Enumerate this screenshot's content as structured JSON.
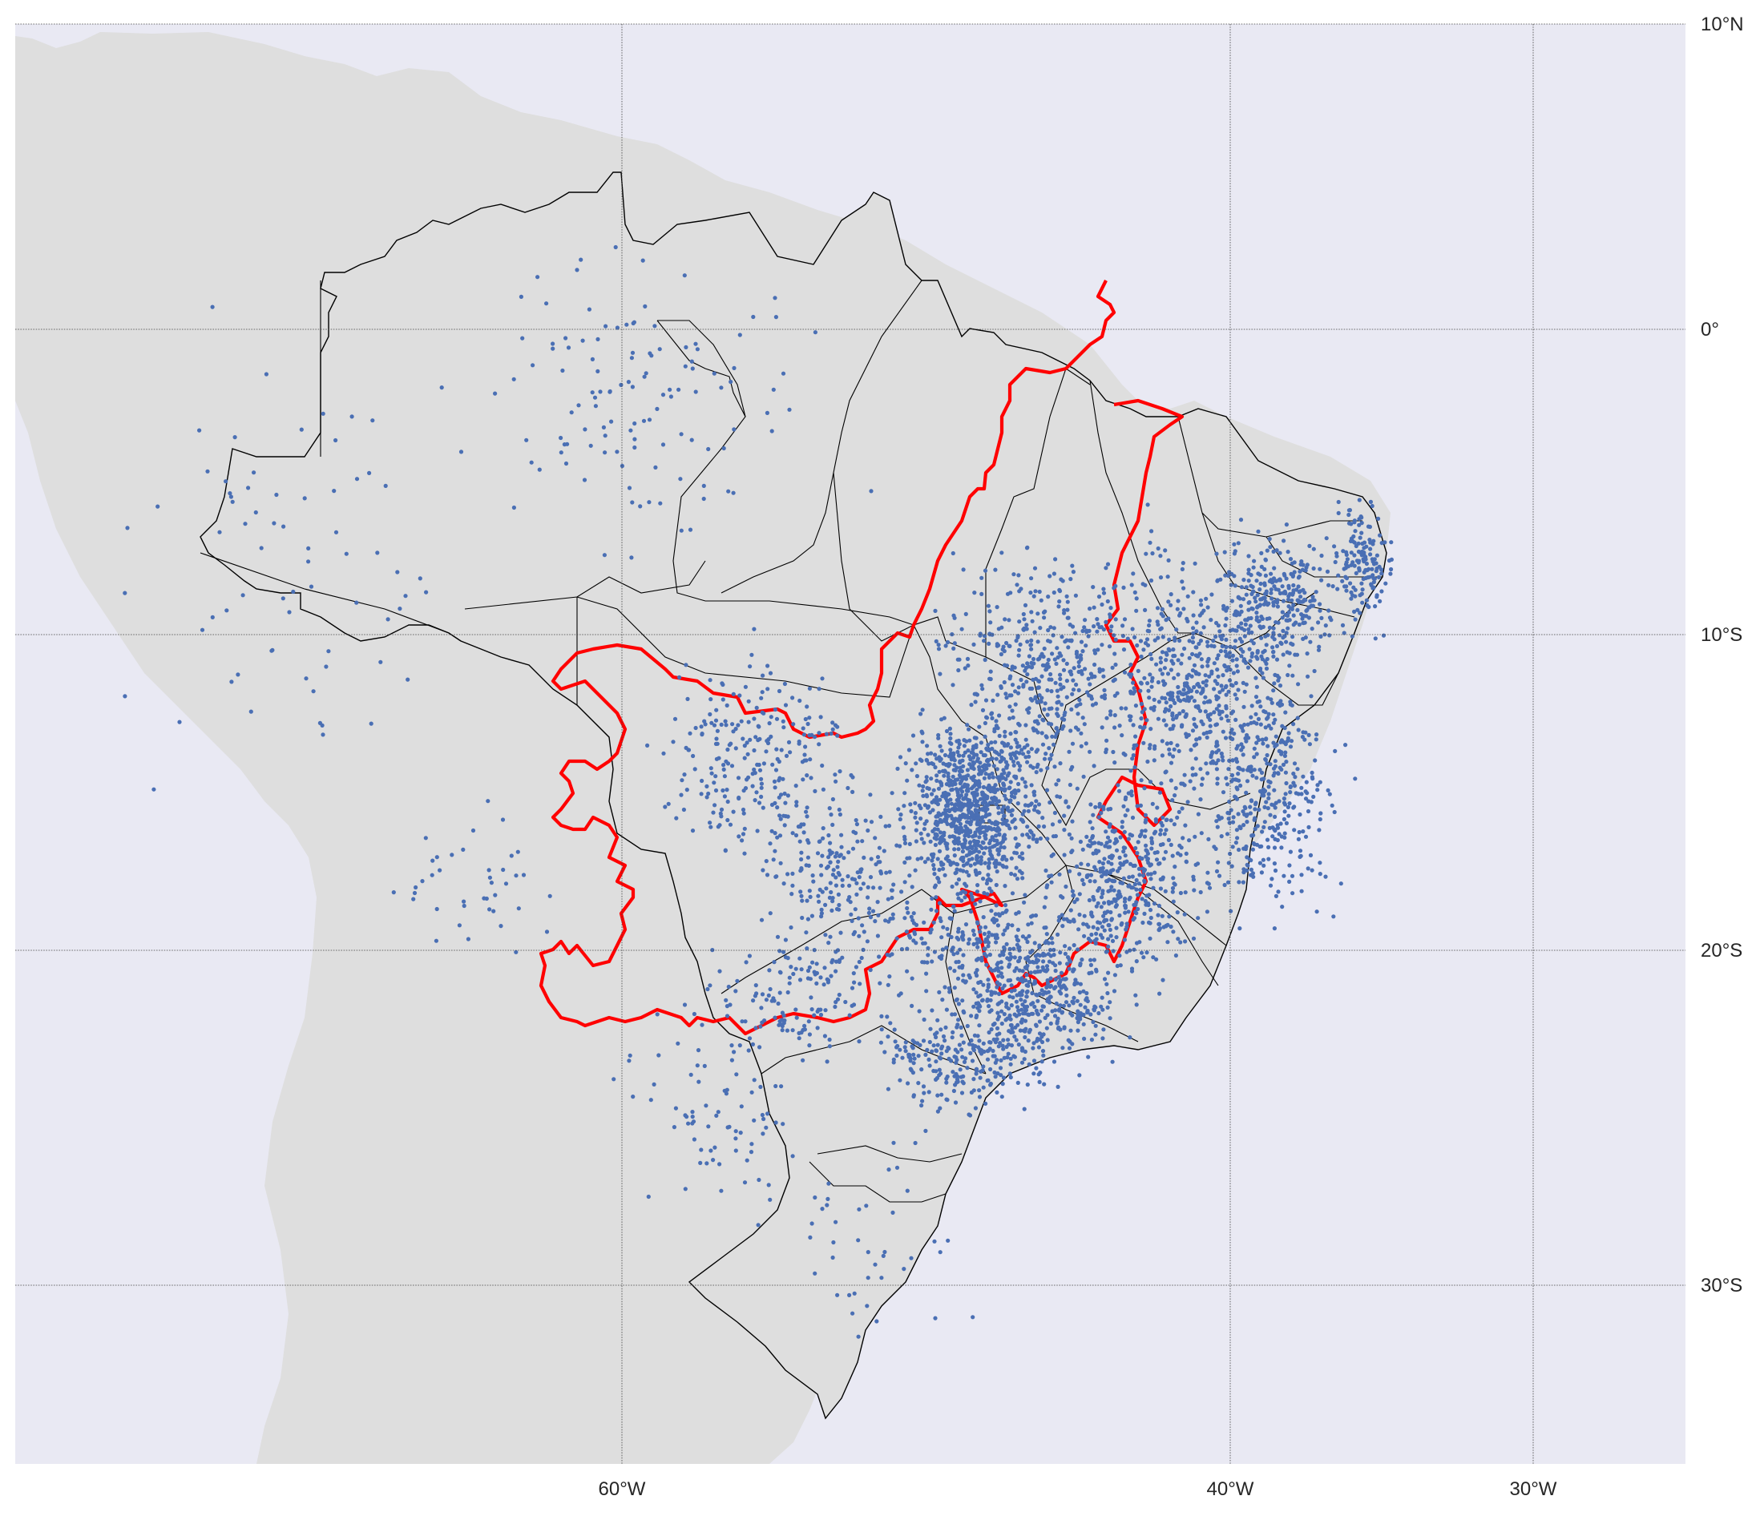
{
  "map": {
    "axes": {
      "lon_ticks": [
        "60°W",
        "40°W",
        "30°W"
      ],
      "lat_ticks": [
        "10°N",
        "0°",
        "10°S",
        "20°S",
        "30°S"
      ]
    },
    "colors": {
      "ocean": "#e9e9f3",
      "land": "#dedede",
      "borders": "#000000",
      "points": "#4a6fb4",
      "region_outline": "#ff0000"
    },
    "features": [
      "country-outline",
      "state-borders",
      "occurrence-points",
      "highlighted-region-outline",
      "graticule"
    ]
  }
}
